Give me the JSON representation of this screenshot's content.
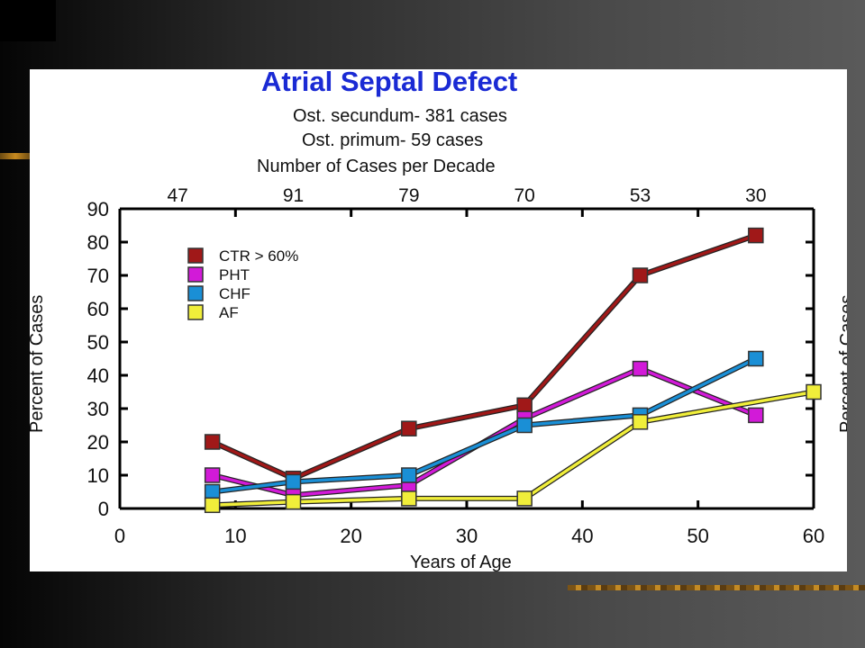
{
  "chart_data": {
    "type": "line",
    "title": "Atrial Septal Defect",
    "subtitle_lines": [
      "Ost. secundum- 381 cases",
      "Ost. primum- 59 cases"
    ],
    "top_axis_label": "Number of Cases per Decade",
    "top_axis_values": [
      "47",
      "91",
      "79",
      "70",
      "53",
      "30"
    ],
    "xlabel": "Years of Age",
    "ylabel": "Percent of Cases",
    "ylabel_right": "Percent of Cases",
    "xlim": [
      0,
      60
    ],
    "ylim": [
      0,
      90
    ],
    "x_ticks": [
      "0",
      "10",
      "20",
      "30",
      "40",
      "50",
      "60"
    ],
    "y_ticks": [
      "0",
      "10",
      "20",
      "30",
      "40",
      "50",
      "60",
      "70",
      "80",
      "90"
    ],
    "grid": false,
    "legend_position": "top-left",
    "series": [
      {
        "name": "CTR > 60%",
        "color": "#a01818",
        "x": [
          8,
          15,
          25,
          35,
          45,
          55
        ],
        "y": [
          20,
          9,
          24,
          31,
          70,
          82
        ]
      },
      {
        "name": "PHT",
        "color": "#d21ad8",
        "x": [
          8,
          15,
          25,
          35,
          45,
          55
        ],
        "y": [
          10,
          4,
          7,
          27,
          42,
          28
        ]
      },
      {
        "name": "CHF",
        "color": "#1a8fd6",
        "x": [
          8,
          15,
          25,
          35,
          45,
          55
        ],
        "y": [
          5,
          8,
          10,
          25,
          28,
          45
        ]
      },
      {
        "name": "AF",
        "color": "#f0ee3a",
        "x": [
          8,
          15,
          25,
          35,
          45,
          60
        ],
        "y": [
          1,
          2,
          3,
          3,
          26,
          35
        ]
      }
    ]
  }
}
